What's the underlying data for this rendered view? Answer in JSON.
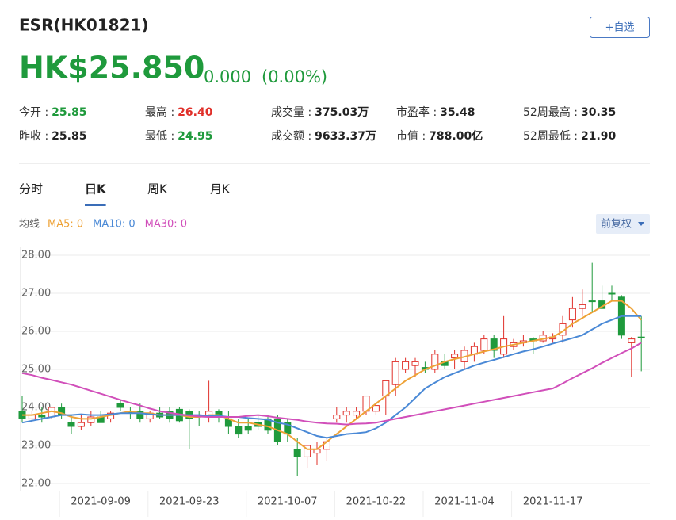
{
  "header": {
    "title": "ESR(HK01821)",
    "button": "+自选",
    "price": "HK$25.850",
    "change": "0.000",
    "change_pct": "(0.00%)",
    "price_color": "#1f9a3c",
    "stats": [
      [
        {
          "label": "今开 :",
          "value": "25.85",
          "color": "#1f9a3c"
        },
        {
          "label": "最高 :",
          "value": "26.40",
          "color": "#e0302a"
        },
        {
          "label": "成交量 :",
          "value": "375.03万",
          "color": "#222222"
        },
        {
          "label": "市盈率 :",
          "value": "35.48",
          "color": "#222222"
        },
        {
          "label": "52周最高 :",
          "value": "30.35",
          "color": "#222222"
        }
      ],
      [
        {
          "label": "昨收 :",
          "value": "25.85",
          "color": "#222222"
        },
        {
          "label": "最低 :",
          "value": "24.95",
          "color": "#1f9a3c"
        },
        {
          "label": "成交额 :",
          "value": "9633.37万",
          "color": "#222222"
        },
        {
          "label": "市值 :",
          "value": "788.00亿",
          "color": "#222222"
        },
        {
          "label": "52周最低 :",
          "value": "21.90",
          "color": "#222222"
        }
      ]
    ],
    "tabs": [
      "分时",
      "日K",
      "周K",
      "月K"
    ],
    "active_tab": 1,
    "ma_label": "均线",
    "adjust": "前复权"
  },
  "chart_data": {
    "type": "candlestick",
    "up_color": "#e0302a",
    "down_color": "#1f9a3c",
    "grid": true,
    "categories": [
      null,
      null,
      null,
      null,
      null,
      null,
      null,
      null,
      "2021-09-09",
      null,
      null,
      null,
      null,
      null,
      null,
      null,
      null,
      "2021-09-23",
      null,
      null,
      null,
      null,
      null,
      null,
      null,
      null,
      null,
      "2021-10-07",
      null,
      null,
      null,
      null,
      null,
      null,
      null,
      null,
      "2021-10-22",
      null,
      null,
      null,
      null,
      null,
      null,
      null,
      null,
      "2021-11-04",
      null,
      null,
      null,
      null,
      null,
      null,
      null,
      null,
      "2021-11-17",
      null,
      null,
      null,
      null,
      null,
      null,
      null,
      null,
      null
    ],
    "open": [
      23.9,
      23.7,
      23.8,
      23.75,
      24.0,
      23.6,
      23.5,
      23.6,
      23.75,
      23.7,
      24.1,
      23.9,
      23.9,
      23.7,
      23.85,
      23.9,
      23.95,
      23.9,
      23.8,
      23.8,
      23.9,
      23.7,
      23.5,
      23.5,
      23.6,
      23.7,
      23.7,
      23.6,
      22.9,
      22.7,
      22.8,
      22.9,
      23.7,
      23.8,
      23.8,
      23.9,
      23.9,
      24.3,
      24.6,
      25.0,
      25.1,
      25.05,
      25.0,
      25.2,
      25.3,
      25.2,
      25.4,
      25.5,
      25.8,
      25.4,
      25.6,
      25.7,
      25.8,
      25.75,
      25.8,
      25.9,
      26.3,
      26.6,
      26.8,
      26.8,
      27.0,
      26.9,
      25.7,
      25.85
    ],
    "high": [
      24.3,
      23.9,
      24.0,
      24.0,
      24.1,
      23.8,
      23.8,
      23.9,
      23.9,
      23.9,
      24.2,
      24.0,
      24.1,
      23.9,
      24.0,
      24.0,
      24.0,
      23.95,
      23.9,
      24.7,
      23.95,
      23.9,
      23.7,
      23.7,
      23.8,
      23.8,
      23.8,
      23.7,
      23.2,
      23.0,
      23.1,
      23.2,
      24.0,
      24.0,
      24.0,
      24.3,
      24.1,
      24.7,
      25.3,
      25.3,
      25.3,
      25.2,
      25.5,
      25.4,
      25.5,
      25.6,
      25.7,
      25.9,
      25.9,
      26.4,
      25.8,
      25.9,
      25.85,
      26.0,
      25.95,
      26.4,
      26.9,
      27.1,
      27.8,
      27.2,
      27.2,
      26.95,
      25.85,
      26.4
    ],
    "low": [
      23.6,
      23.6,
      23.6,
      23.7,
      23.7,
      23.3,
      23.4,
      23.5,
      23.6,
      23.6,
      23.9,
      23.7,
      23.6,
      23.6,
      23.7,
      23.6,
      23.6,
      22.9,
      23.5,
      23.6,
      23.6,
      23.3,
      23.2,
      23.3,
      23.4,
      23.3,
      23.0,
      23.1,
      22.2,
      22.4,
      22.5,
      22.6,
      23.6,
      23.6,
      23.7,
      23.8,
      23.8,
      23.8,
      24.3,
      24.9,
      24.8,
      24.9,
      24.9,
      25.0,
      25.0,
      25.0,
      25.2,
      25.4,
      25.3,
      25.3,
      25.5,
      25.6,
      25.4,
      25.7,
      25.7,
      25.7,
      26.1,
      26.4,
      26.5,
      26.6,
      26.8,
      25.8,
      24.8,
      24.95
    ],
    "close": [
      23.7,
      23.8,
      23.75,
      24.0,
      23.8,
      23.5,
      23.6,
      23.75,
      23.6,
      23.85,
      24.0,
      23.85,
      23.7,
      23.85,
      23.75,
      23.7,
      23.65,
      23.7,
      23.8,
      23.9,
      23.75,
      23.5,
      23.3,
      23.4,
      23.5,
      23.4,
      23.1,
      23.3,
      22.7,
      23.0,
      22.9,
      23.1,
      23.8,
      23.9,
      23.9,
      24.3,
      24.05,
      24.7,
      25.2,
      25.2,
      25.2,
      25.0,
      25.4,
      25.1,
      25.4,
      25.5,
      25.6,
      25.8,
      25.5,
      25.8,
      25.7,
      25.75,
      25.75,
      25.9,
      25.85,
      26.2,
      26.6,
      26.7,
      26.8,
      26.6,
      27.0,
      25.9,
      25.8,
      25.85
    ],
    "series": [
      {
        "name": "MA5: 0",
        "color": "#eea236",
        "values": [
          23.8,
          23.8,
          23.85,
          23.9,
          23.85,
          23.75,
          23.7,
          23.7,
          23.75,
          23.8,
          23.85,
          23.9,
          23.85,
          23.85,
          23.8,
          23.8,
          23.8,
          23.75,
          23.75,
          23.8,
          23.8,
          23.7,
          23.6,
          23.6,
          23.55,
          23.5,
          23.4,
          23.3,
          23.1,
          22.9,
          22.9,
          23.1,
          23.3,
          23.5,
          23.7,
          23.9,
          24.1,
          24.3,
          24.5,
          24.7,
          24.85,
          25.0,
          25.1,
          25.2,
          25.27,
          25.33,
          25.4,
          25.47,
          25.53,
          25.6,
          25.65,
          25.7,
          25.75,
          25.8,
          25.85,
          26.0,
          26.2,
          26.35,
          26.5,
          26.65,
          26.8,
          26.8,
          26.6,
          26.3
        ]
      },
      {
        "name": "MA10: 0",
        "color": "#4a89d6",
        "values": [
          23.6,
          23.65,
          23.7,
          23.75,
          23.8,
          23.8,
          23.82,
          23.8,
          23.8,
          23.82,
          23.85,
          23.85,
          23.85,
          23.82,
          23.8,
          23.8,
          23.8,
          23.8,
          23.8,
          23.78,
          23.78,
          23.75,
          23.75,
          23.72,
          23.7,
          23.68,
          23.6,
          23.55,
          23.45,
          23.35,
          23.25,
          23.2,
          23.25,
          23.3,
          23.32,
          23.35,
          23.45,
          23.6,
          23.8,
          24.0,
          24.25,
          24.5,
          24.65,
          24.8,
          24.9,
          25.0,
          25.1,
          25.18,
          25.25,
          25.32,
          25.4,
          25.47,
          25.53,
          25.6,
          25.68,
          25.75,
          25.82,
          25.9,
          26.05,
          26.2,
          26.3,
          26.4,
          26.4,
          26.4
        ]
      },
      {
        "name": "MA30: 0",
        "color": "#d14fba",
        "values": [
          24.9,
          24.85,
          24.78,
          24.72,
          24.66,
          24.6,
          24.52,
          24.44,
          24.36,
          24.28,
          24.2,
          24.12,
          24.05,
          23.97,
          23.9,
          23.86,
          23.82,
          23.79,
          23.76,
          23.75,
          23.75,
          23.75,
          23.75,
          23.78,
          23.8,
          23.77,
          23.73,
          23.7,
          23.67,
          23.63,
          23.6,
          23.58,
          23.57,
          23.55,
          23.57,
          23.58,
          23.6,
          23.65,
          23.7,
          23.75,
          23.8,
          23.85,
          23.9,
          23.95,
          24.0,
          24.05,
          24.1,
          24.15,
          24.2,
          24.25,
          24.3,
          24.35,
          24.4,
          24.45,
          24.5,
          24.63,
          24.77,
          24.9,
          25.03,
          25.17,
          25.3,
          25.43,
          25.55,
          25.7
        ]
      }
    ],
    "ylim": [
      22,
      28
    ],
    "yticks": [
      {
        "value": 22,
        "label": "22.00"
      },
      {
        "value": 23,
        "label": "23.00"
      },
      {
        "value": 24,
        "label": "24.00"
      },
      {
        "value": 25,
        "label": "25.00"
      },
      {
        "value": 26,
        "label": "26.00"
      },
      {
        "value": 27,
        "label": "27.00"
      },
      {
        "value": 28,
        "label": "28.00"
      }
    ]
  }
}
